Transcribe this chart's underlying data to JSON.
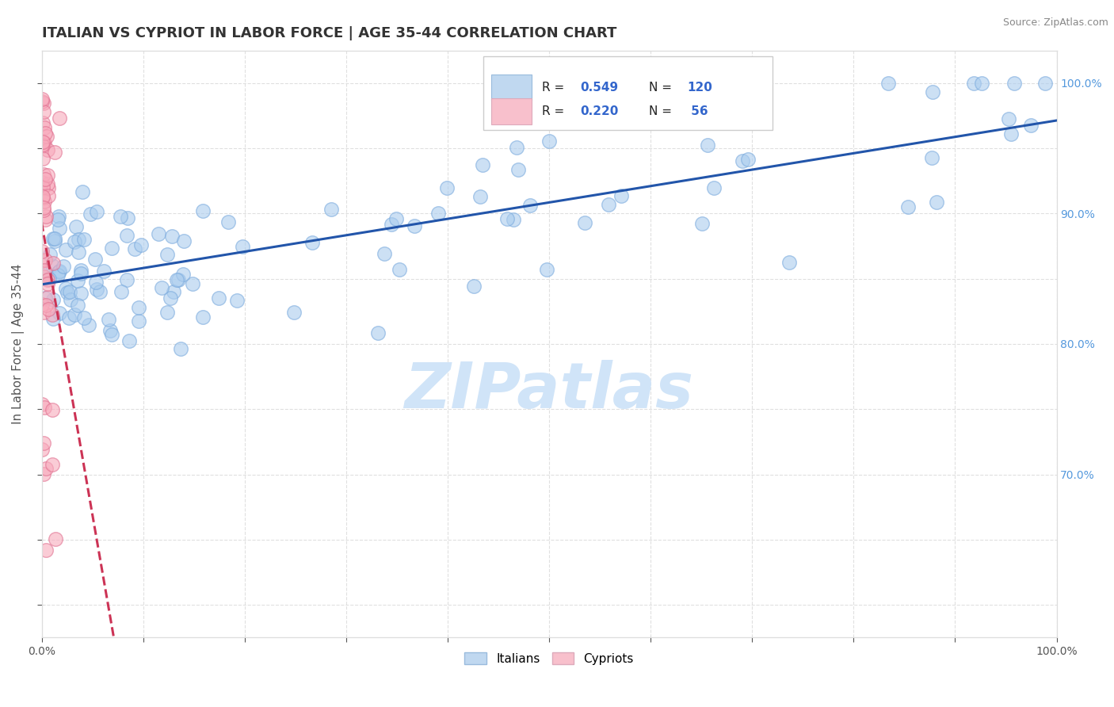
{
  "title": "ITALIAN VS CYPRIOT IN LABOR FORCE | AGE 35-44 CORRELATION CHART",
  "source_text": "Source: ZipAtlas.com",
  "ylabel": "In Labor Force | Age 35-44",
  "xlim": [
    0.0,
    1.0
  ],
  "ylim": [
    0.575,
    1.025
  ],
  "italian_line_color": "#2255aa",
  "cypriot_line_color": "#cc3355",
  "watermark_text": "ZIPatlas",
  "watermark_color": "#d0e4f8",
  "background_color": "#ffffff",
  "grid_color": "#dddddd",
  "title_fontsize": 13,
  "axis_label_fontsize": 11,
  "tick_fontsize": 10,
  "right_tick_color": "#5599dd",
  "italian_scatter_face": "#aaccee",
  "italian_scatter_edge": "#7aaadd",
  "cypriot_scatter_face": "#f8aabc",
  "cypriot_scatter_edge": "#e07090",
  "legend_box_italian": "#c0d8f0",
  "legend_box_cypriot": "#f8c0cc",
  "legend_R_color": "#3366cc",
  "legend_N_color": "#3366cc"
}
